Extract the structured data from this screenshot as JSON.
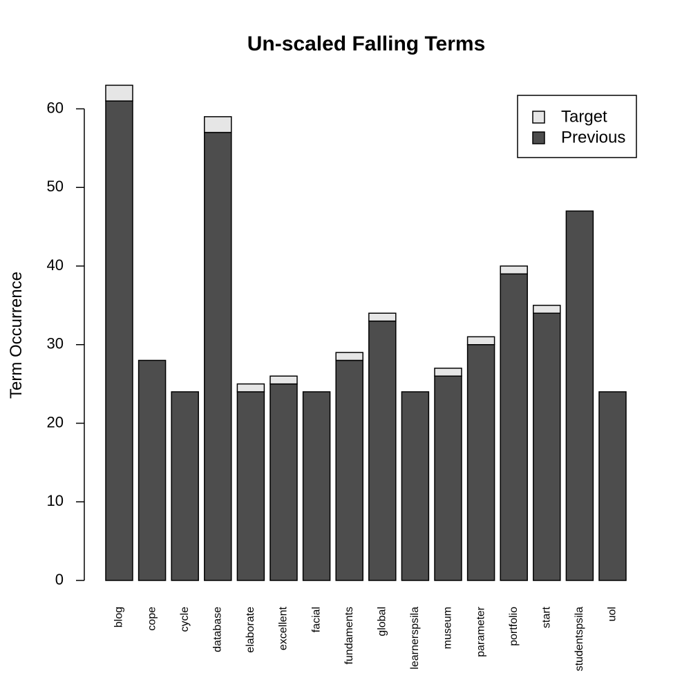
{
  "chart_data": {
    "type": "bar",
    "stacked": true,
    "title": "Un-scaled Falling Terms",
    "xlabel": "",
    "ylabel": "Term Occurrence",
    "ylim": [
      0,
      60
    ],
    "yticks": [
      0,
      10,
      20,
      30,
      40,
      50,
      60
    ],
    "grid": false,
    "legend_position": "top-right",
    "categories": [
      "blog",
      "cope",
      "cycle",
      "database",
      "elaborate",
      "excellent",
      "facial",
      "fundaments",
      "global",
      "learnerspsila",
      "museum",
      "parameter",
      "portfolio",
      "start",
      "studentspsila",
      "uol"
    ],
    "series": [
      {
        "name": "Previous",
        "color": "#4d4d4d",
        "values": [
          61,
          28,
          24,
          57,
          24,
          25,
          24,
          28,
          33,
          24,
          26,
          30,
          39,
          34,
          47,
          24
        ]
      },
      {
        "name": "Target",
        "color": "#e6e6e6",
        "values": [
          2,
          0,
          0,
          2,
          1,
          1,
          0,
          1,
          1,
          0,
          1,
          1,
          1,
          1,
          0,
          0
        ]
      }
    ],
    "legend_order": [
      "Target",
      "Previous"
    ]
  }
}
